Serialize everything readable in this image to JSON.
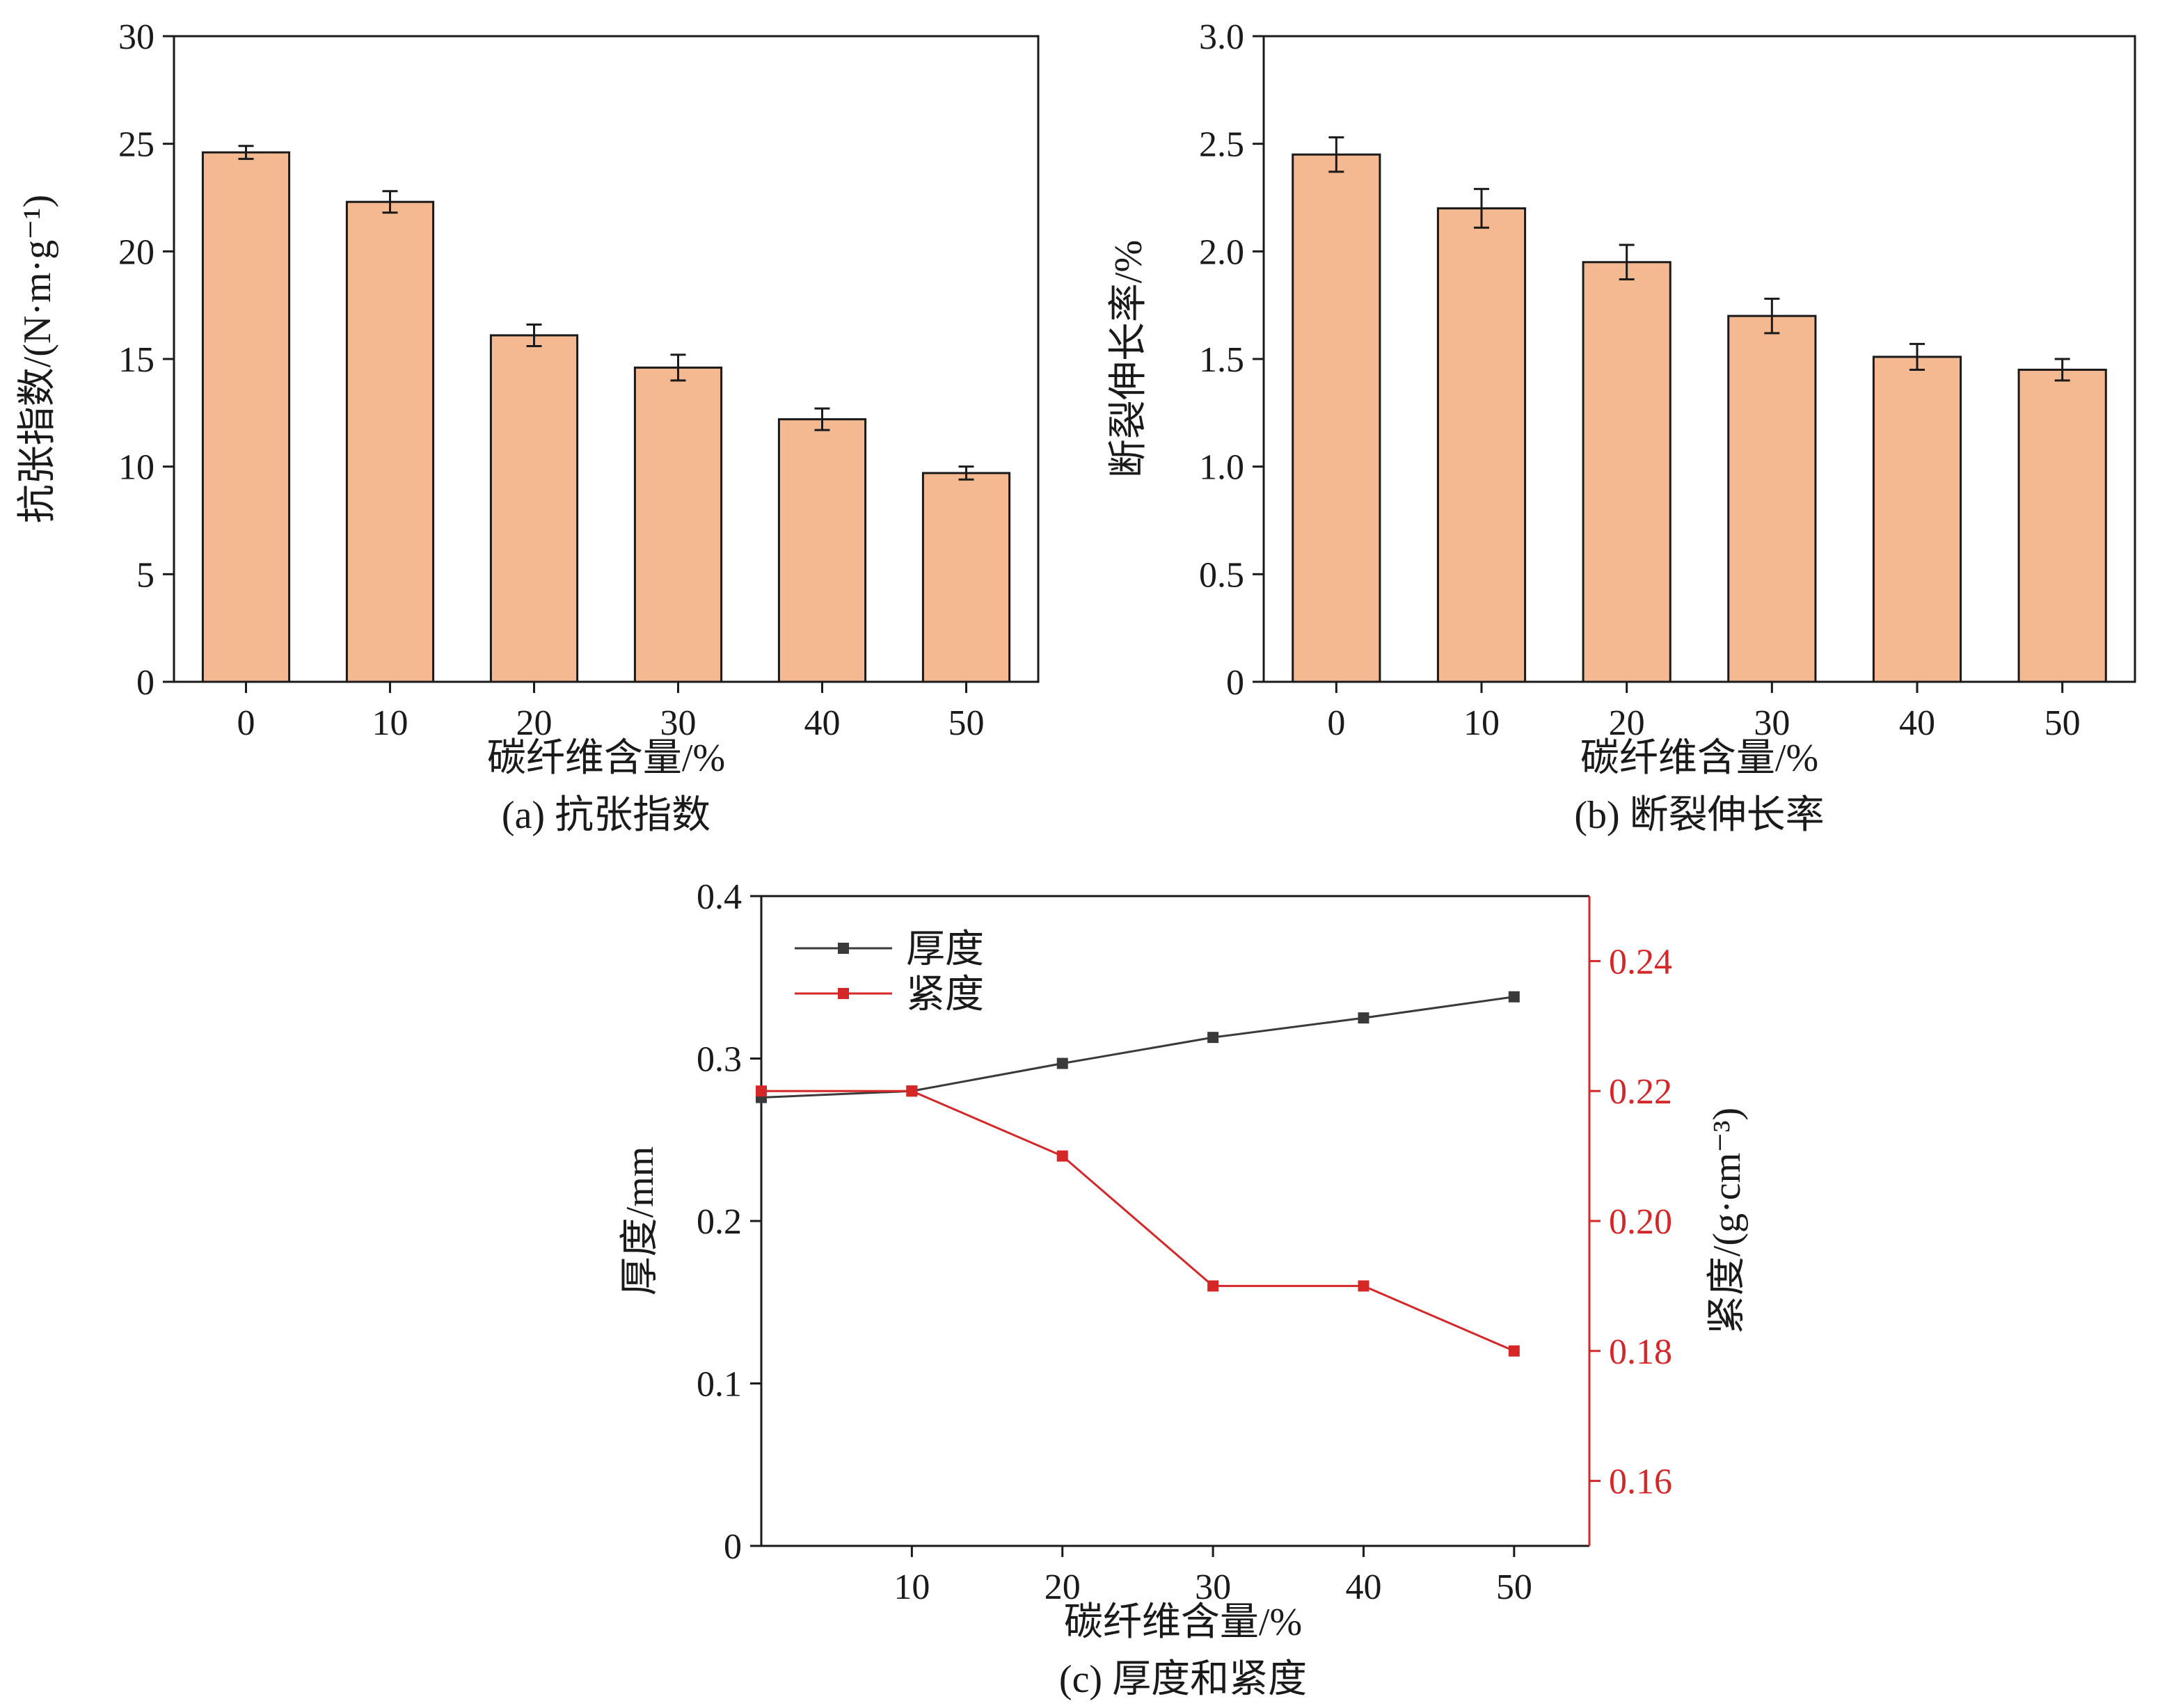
{
  "chart_data": [
    {
      "id": "a",
      "type": "bar",
      "caption": "(a) 抗张指数",
      "xlabel": "碳纤维含量/%",
      "ylabel": "抗张指数/(N·m·g⁻¹)",
      "categories": [
        "0",
        "10",
        "20",
        "30",
        "40",
        "50"
      ],
      "values": [
        24.6,
        22.3,
        16.1,
        14.6,
        12.2,
        9.7
      ],
      "errors": [
        0.3,
        0.5,
        0.5,
        0.6,
        0.5,
        0.3
      ],
      "ylim": [
        0,
        30
      ],
      "yticks": [
        0,
        5,
        10,
        15,
        20,
        25,
        30
      ],
      "bar_color": "#f4b990"
    },
    {
      "id": "b",
      "type": "bar",
      "caption": "(b) 断裂伸长率",
      "xlabel": "碳纤维含量/%",
      "ylabel": "断裂伸长率/%",
      "categories": [
        "0",
        "10",
        "20",
        "30",
        "40",
        "50"
      ],
      "values": [
        2.45,
        2.2,
        1.95,
        1.7,
        1.51,
        1.45
      ],
      "errors": [
        0.08,
        0.09,
        0.08,
        0.08,
        0.06,
        0.05
      ],
      "ylim": [
        0,
        3.0
      ],
      "yticks": [
        "0",
        "0.5",
        "1.0",
        "1.5",
        "2.0",
        "2.5",
        "3.0"
      ],
      "bar_color": "#f4b990"
    },
    {
      "id": "c",
      "type": "line",
      "caption": "(c) 厚度和紧度",
      "xlabel": "碳纤维含量/%",
      "ylabel": "厚度/mm",
      "ylabel_right": "紧度/(g·cm⁻³)",
      "x": [
        0,
        10,
        20,
        30,
        40,
        50
      ],
      "xlim": [
        0,
        55
      ],
      "xticks": [
        "10",
        "20",
        "30",
        "40",
        "50"
      ],
      "ylim": [
        0,
        0.4
      ],
      "yticks": [
        "0",
        "0.1",
        "0.2",
        "0.3",
        "0.4"
      ],
      "ylim_right": [
        0.15,
        0.25
      ],
      "yticks_right": [
        "0.16",
        "0.18",
        "0.20",
        "0.22",
        "0.24"
      ],
      "right_axis_color": "#d62728",
      "series": [
        {
          "name": "厚度",
          "axis": "left",
          "color": "#3a3a3a",
          "values": [
            0.276,
            0.28,
            0.297,
            0.313,
            0.325,
            0.338
          ]
        },
        {
          "name": "紧度",
          "axis": "right",
          "color": "#d62728",
          "values": [
            0.22,
            0.22,
            0.21,
            0.19,
            0.19,
            0.18
          ]
        }
      ]
    }
  ]
}
